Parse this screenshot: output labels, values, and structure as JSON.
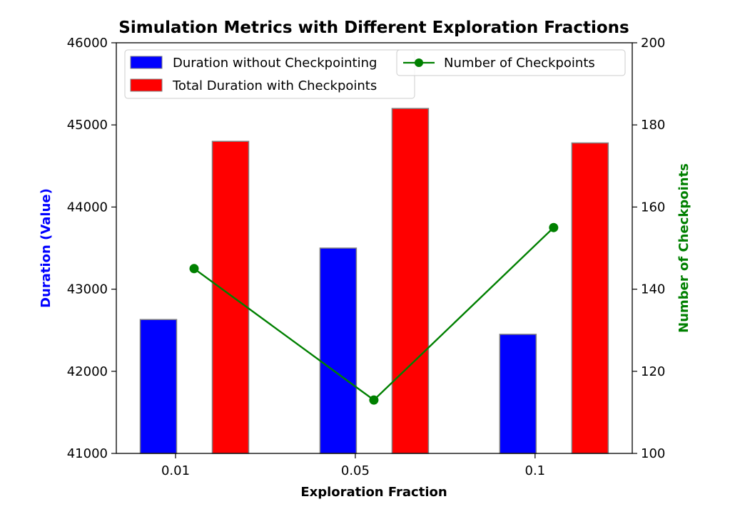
{
  "chart_data": {
    "type": "bar",
    "title": "Simulation Metrics with Different Exploration Fractions",
    "xlabel": "Exploration Fraction",
    "ylabel": "Duration (Value)",
    "y2label": "Number of Checkpoints",
    "categories": [
      "0.01",
      "0.05",
      "0.1"
    ],
    "ylim": [
      41000,
      46000
    ],
    "y2lim": [
      100,
      200
    ],
    "yticks": [
      "41000",
      "42000",
      "43000",
      "44000",
      "45000",
      "46000"
    ],
    "y2ticks": [
      "100",
      "120",
      "140",
      "160",
      "180",
      "200"
    ],
    "series": [
      {
        "name": "Duration without Checkpointing",
        "axis": "left",
        "kind": "bar",
        "color": "#0000ff",
        "values": [
          42630,
          43500,
          42450
        ]
      },
      {
        "name": "Total Duration with Checkpoints",
        "axis": "left",
        "kind": "bar",
        "color": "#ff0000",
        "values": [
          44800,
          45200,
          44780
        ]
      },
      {
        "name": "Number of Checkpoints",
        "axis": "right",
        "kind": "line",
        "color": "#008000",
        "values": [
          145,
          113,
          155
        ]
      }
    ],
    "legend": {
      "left_placement": "upper-left",
      "right_placement": "upper-right"
    },
    "ylabel_color": "#0000ff",
    "y2label_color": "#008000",
    "grid": false
  }
}
